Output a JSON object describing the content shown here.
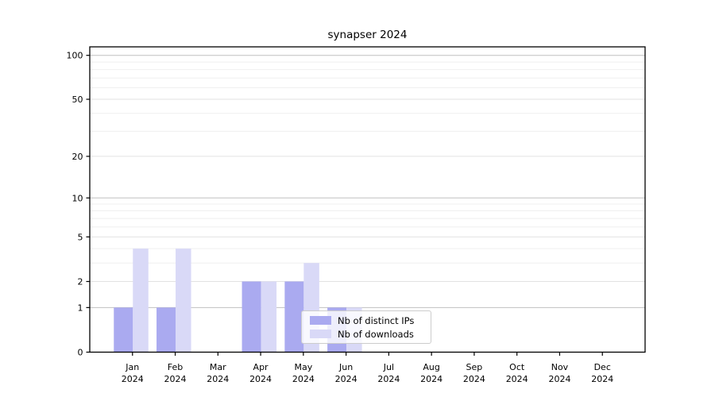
{
  "figure": {
    "title": "synapser 2024"
  },
  "colors": {
    "distinct_ips_bar": "#aaaaf0",
    "downloads_bar": "#d9d9f7",
    "grid_decade": "#c0c0c0",
    "grid_labeled": "#e2e2e2",
    "grid_minor": "#efefef",
    "axis": "#000000",
    "legend_border": "#cccccc",
    "text": "#000000"
  },
  "chart_data": {
    "type": "bar",
    "title": "synapser 2024",
    "categories": [
      "Jan 2024",
      "Feb 2024",
      "Mar 2024",
      "Apr 2024",
      "May 2024",
      "Jun 2024",
      "Jul 2024",
      "Aug 2024",
      "Sep 2024",
      "Oct 2024",
      "Nov 2024",
      "Dec 2024"
    ],
    "series": [
      {
        "name": "Nb of distinct IPs",
        "values": [
          1,
          1,
          0,
          2,
          2,
          1,
          0,
          0,
          0,
          0,
          0,
          0
        ]
      },
      {
        "name": "Nb of downloads",
        "values": [
          4,
          4,
          0,
          2,
          3,
          1,
          0,
          0,
          0,
          0,
          0,
          0
        ]
      }
    ],
    "xlabel": "",
    "ylabel": "",
    "y_ticks": [
      0,
      1,
      2,
      5,
      10,
      20,
      50,
      100
    ],
    "y_scale": "log10(value+1)",
    "ylim": [
      0,
      115
    ],
    "grid": "horizontal",
    "legend_position": "lower-center"
  }
}
